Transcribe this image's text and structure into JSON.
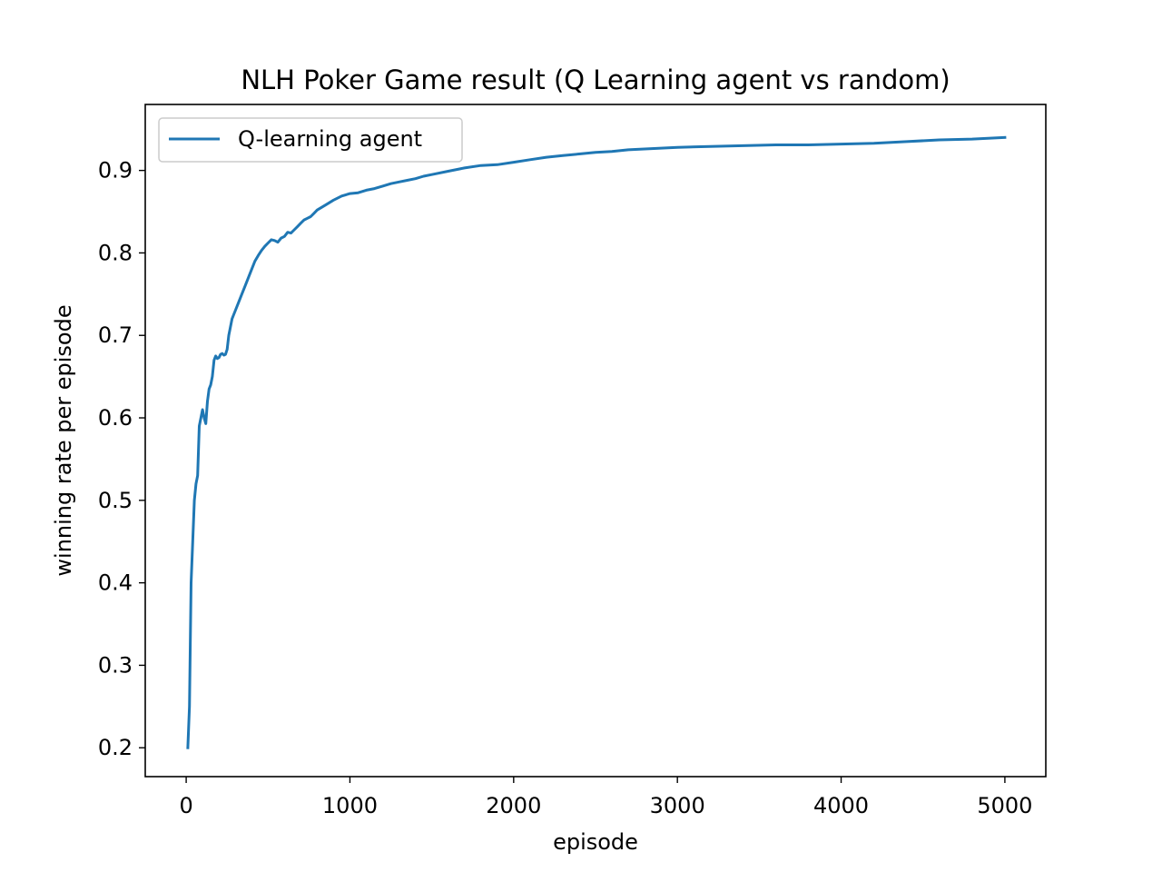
{
  "chart_data": {
    "type": "line",
    "title": "NLH Poker Game result (Q Learning agent vs random)",
    "xlabel": "episode",
    "ylabel": "winning rate per episode",
    "xlim": [
      -250,
      5250
    ],
    "ylim": [
      0.165,
      0.98
    ],
    "xticks": [
      0,
      1000,
      2000,
      3000,
      4000,
      5000
    ],
    "xtick_labels": [
      "0",
      "1000",
      "2000",
      "3000",
      "4000",
      "5000"
    ],
    "yticks": [
      0.2,
      0.3,
      0.4,
      0.5,
      0.6,
      0.7,
      0.8,
      0.9
    ],
    "ytick_labels": [
      "0.2",
      "0.3",
      "0.4",
      "0.5",
      "0.6",
      "0.7",
      "0.8",
      "0.9"
    ],
    "grid": false,
    "legend_position": "top-left",
    "series": [
      {
        "name": "Q-learning agent",
        "color": "#1f77b4",
        "x": [
          10,
          20,
          30,
          40,
          50,
          60,
          70,
          80,
          90,
          100,
          110,
          120,
          130,
          140,
          150,
          160,
          170,
          180,
          190,
          200,
          210,
          220,
          230,
          240,
          250,
          260,
          270,
          280,
          290,
          300,
          320,
          340,
          360,
          380,
          400,
          420,
          440,
          460,
          480,
          500,
          520,
          540,
          560,
          580,
          600,
          620,
          640,
          660,
          680,
          700,
          720,
          740,
          760,
          780,
          800,
          850,
          900,
          950,
          1000,
          1050,
          1100,
          1150,
          1200,
          1250,
          1300,
          1350,
          1400,
          1450,
          1500,
          1600,
          1700,
          1800,
          1900,
          2000,
          2100,
          2200,
          2300,
          2400,
          2500,
          2600,
          2700,
          2800,
          2900,
          3000,
          3200,
          3400,
          3600,
          3800,
          4000,
          4200,
          4400,
          4600,
          4800,
          5000
        ],
        "values": [
          0.2,
          0.25,
          0.4,
          0.45,
          0.5,
          0.52,
          0.53,
          0.59,
          0.6,
          0.61,
          0.6,
          0.593,
          0.62,
          0.635,
          0.64,
          0.65,
          0.67,
          0.675,
          0.672,
          0.673,
          0.677,
          0.678,
          0.676,
          0.677,
          0.683,
          0.7,
          0.71,
          0.72,
          0.725,
          0.73,
          0.74,
          0.75,
          0.76,
          0.77,
          0.78,
          0.79,
          0.797,
          0.803,
          0.808,
          0.812,
          0.816,
          0.815,
          0.813,
          0.818,
          0.82,
          0.825,
          0.824,
          0.828,
          0.832,
          0.836,
          0.84,
          0.842,
          0.844,
          0.848,
          0.852,
          0.858,
          0.864,
          0.869,
          0.872,
          0.873,
          0.876,
          0.878,
          0.881,
          0.884,
          0.886,
          0.888,
          0.89,
          0.893,
          0.895,
          0.899,
          0.903,
          0.906,
          0.907,
          0.91,
          0.913,
          0.916,
          0.918,
          0.92,
          0.922,
          0.923,
          0.925,
          0.926,
          0.927,
          0.928,
          0.929,
          0.93,
          0.931,
          0.931,
          0.932,
          0.933,
          0.935,
          0.937,
          0.938,
          0.94
        ]
      }
    ]
  }
}
